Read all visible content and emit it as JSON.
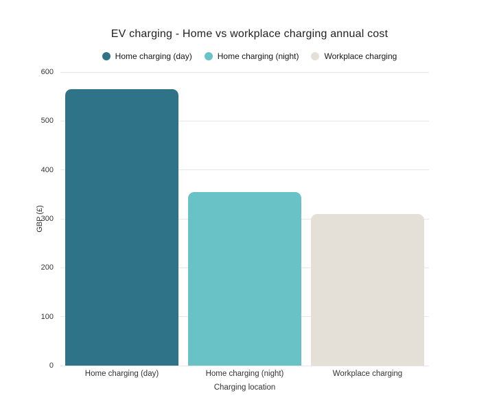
{
  "chart_data": {
    "type": "bar",
    "title": "EV charging - Home vs workplace charging annual cost",
    "categories": [
      "Home charging (day)",
      "Home charging (night)",
      "Workplace charging"
    ],
    "values": [
      565,
      355,
      310
    ],
    "colors": [
      "#2f7389",
      "#68c2c6",
      "#e4e0d8"
    ],
    "xlabel": "Charging location",
    "ylabel": "GBP (£)",
    "ylim": [
      0,
      600
    ],
    "ytick_step": 100,
    "yticks": [
      0,
      100,
      200,
      300,
      400,
      500,
      600
    ],
    "grid": true,
    "legend_position": "top",
    "legend": [
      {
        "label": "Home charging (day)",
        "color": "#2f7389"
      },
      {
        "label": "Home charging (night)",
        "color": "#68c2c6"
      },
      {
        "label": "Workplace charging",
        "color": "#e4e0d8"
      }
    ]
  }
}
